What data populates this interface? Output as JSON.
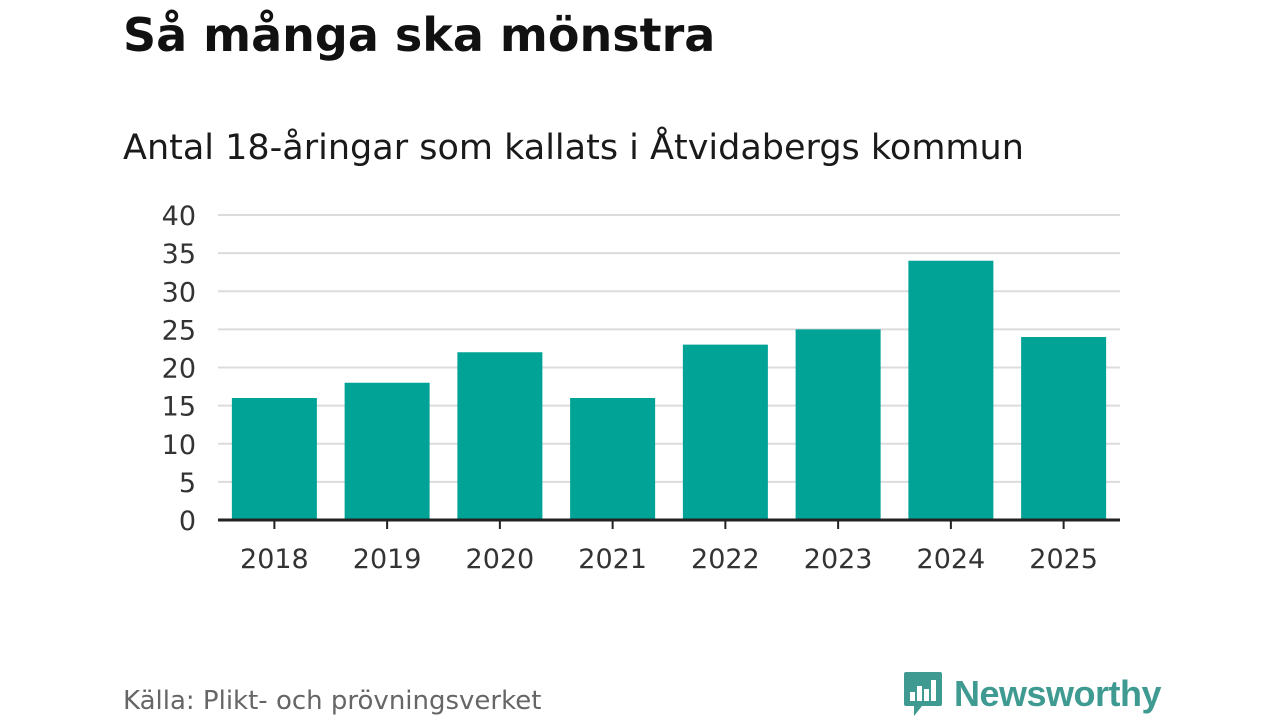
{
  "header": {
    "title": "Så många ska mönstra",
    "subtitle": "Antal 18-åringar som kallats i Åtvidabergs kommun"
  },
  "chart_data": {
    "type": "bar",
    "categories": [
      "2018",
      "2019",
      "2020",
      "2021",
      "2022",
      "2023",
      "2024",
      "2025"
    ],
    "values": [
      16,
      18,
      22,
      16,
      23,
      25,
      34,
      24
    ],
    "ylim": [
      0,
      40
    ],
    "yticks": [
      0,
      5,
      10,
      15,
      20,
      25,
      30,
      35,
      40
    ],
    "xlabel": "",
    "ylabel": "",
    "grid": true,
    "bar_color": "#00a396",
    "grid_color": "#dcdcdc",
    "axis_color": "#222222"
  },
  "footer": {
    "source": "Källa: Plikt- och prövningsverket",
    "brand_name": "Newsworthy",
    "brand_color": "#3f9a92",
    "brand_icon": "bar-chart-speech-bubble-icon"
  }
}
